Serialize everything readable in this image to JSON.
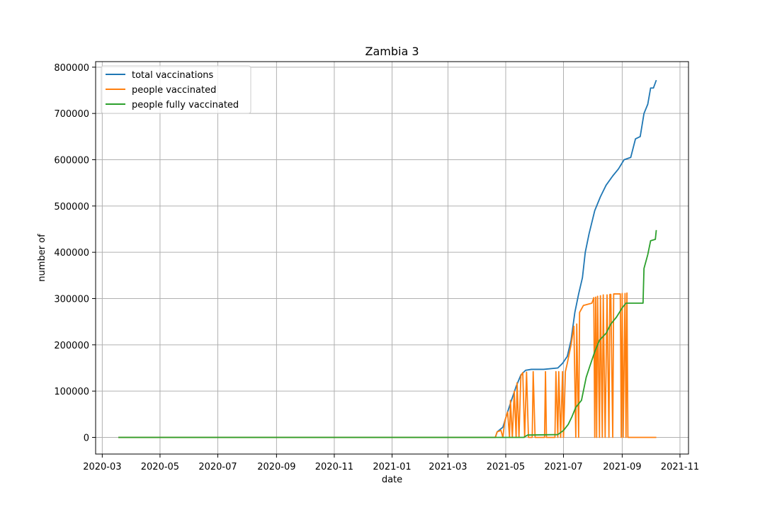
{
  "chart_data": {
    "type": "line",
    "title": "Zambia 3",
    "xlabel": "date",
    "ylabel": "number of",
    "x_axis": {
      "type": "date",
      "range": [
        "2020-02-23",
        "2021-11-10"
      ],
      "ticks": [
        "2020-03-01",
        "2020-05-01",
        "2020-07-01",
        "2020-09-01",
        "2020-11-01",
        "2021-01-01",
        "2021-03-01",
        "2021-05-01",
        "2021-07-01",
        "2021-09-01",
        "2021-11-01"
      ],
      "tick_labels": [
        "2020-03",
        "2020-05",
        "2020-07",
        "2020-09",
        "2020-11",
        "2021-01",
        "2021-03",
        "2021-05",
        "2021-07",
        "2021-09",
        "2021-11"
      ]
    },
    "y_axis": {
      "range": [
        -36000,
        812000
      ],
      "ticks": [
        0,
        100000,
        200000,
        300000,
        400000,
        500000,
        600000,
        700000,
        800000
      ],
      "tick_labels": [
        "0",
        "100000",
        "200000",
        "300000",
        "400000",
        "500000",
        "600000",
        "700000",
        "800000"
      ]
    },
    "grid": true,
    "legend_position": "upper-left",
    "series": [
      {
        "name": "total vaccinations",
        "color": "#1f77b4",
        "points": [
          [
            "2020-03-18",
            0
          ],
          [
            "2021-04-20",
            0
          ],
          [
            "2021-04-22",
            12000
          ],
          [
            "2021-04-28",
            22000
          ],
          [
            "2021-05-03",
            55000
          ],
          [
            "2021-05-07",
            80000
          ],
          [
            "2021-05-12",
            110000
          ],
          [
            "2021-05-17",
            135000
          ],
          [
            "2021-05-22",
            145000
          ],
          [
            "2021-05-28",
            147000
          ],
          [
            "2021-06-10",
            147000
          ],
          [
            "2021-06-25",
            150000
          ],
          [
            "2021-06-30",
            160000
          ],
          [
            "2021-07-05",
            175000
          ],
          [
            "2021-07-09",
            210000
          ],
          [
            "2021-07-13",
            270000
          ],
          [
            "2021-07-17",
            310000
          ],
          [
            "2021-07-21",
            345000
          ],
          [
            "2021-07-24",
            400000
          ],
          [
            "2021-07-28",
            440000
          ],
          [
            "2021-08-03",
            490000
          ],
          [
            "2021-08-09",
            520000
          ],
          [
            "2021-08-15",
            545000
          ],
          [
            "2021-08-22",
            565000
          ],
          [
            "2021-08-28",
            580000
          ],
          [
            "2021-09-03",
            600000
          ],
          [
            "2021-09-10",
            605000
          ],
          [
            "2021-09-15",
            645000
          ],
          [
            "2021-09-20",
            650000
          ],
          [
            "2021-09-24",
            700000
          ],
          [
            "2021-09-28",
            720000
          ],
          [
            "2021-10-01",
            755000
          ],
          [
            "2021-10-04",
            755000
          ],
          [
            "2021-10-07",
            772000
          ]
        ]
      },
      {
        "name": "people vaccinated",
        "color": "#ff7f0e",
        "points": [
          [
            "2020-03-18",
            0
          ],
          [
            "2021-04-20",
            0
          ],
          [
            "2021-04-22",
            12000
          ],
          [
            "2021-04-26",
            15000
          ],
          [
            "2021-04-28",
            0
          ],
          [
            "2021-04-30",
            35000
          ],
          [
            "2021-05-03",
            55000
          ],
          [
            "2021-05-05",
            0
          ],
          [
            "2021-05-06",
            80000
          ],
          [
            "2021-05-08",
            0
          ],
          [
            "2021-05-10",
            100000
          ],
          [
            "2021-05-12",
            0
          ],
          [
            "2021-05-13",
            118000
          ],
          [
            "2021-05-15",
            0
          ],
          [
            "2021-05-17",
            133000
          ],
          [
            "2021-05-19",
            140000
          ],
          [
            "2021-05-21",
            0
          ],
          [
            "2021-05-23",
            141000
          ],
          [
            "2021-05-25",
            0
          ],
          [
            "2021-05-29",
            0
          ],
          [
            "2021-05-30",
            142000
          ],
          [
            "2021-06-01",
            0
          ],
          [
            "2021-06-11",
            0
          ],
          [
            "2021-06-12",
            142000
          ],
          [
            "2021-06-13",
            0
          ],
          [
            "2021-06-22",
            0
          ],
          [
            "2021-06-23",
            142000
          ],
          [
            "2021-06-25",
            0
          ],
          [
            "2021-06-26",
            142000
          ],
          [
            "2021-06-28",
            0
          ],
          [
            "2021-06-30",
            142000
          ],
          [
            "2021-07-01",
            0
          ],
          [
            "2021-07-03",
            142000
          ],
          [
            "2021-07-05",
            160000
          ],
          [
            "2021-07-09",
            200000
          ],
          [
            "2021-07-12",
            240000
          ],
          [
            "2021-07-14",
            0
          ],
          [
            "2021-07-15",
            245000
          ],
          [
            "2021-07-17",
            0
          ],
          [
            "2021-07-18",
            270000
          ],
          [
            "2021-07-22",
            285000
          ],
          [
            "2021-07-31",
            290000
          ],
          [
            "2021-08-02",
            302000
          ],
          [
            "2021-08-03",
            0
          ],
          [
            "2021-08-04",
            303000
          ],
          [
            "2021-08-05",
            0
          ],
          [
            "2021-08-06",
            305000
          ],
          [
            "2021-08-08",
            0
          ],
          [
            "2021-08-09",
            306000
          ],
          [
            "2021-08-11",
            0
          ],
          [
            "2021-08-12",
            308000
          ],
          [
            "2021-08-14",
            0
          ],
          [
            "2021-08-16",
            308000
          ],
          [
            "2021-08-18",
            0
          ],
          [
            "2021-08-19",
            309000
          ],
          [
            "2021-08-20",
            309000
          ],
          [
            "2021-08-22",
            0
          ],
          [
            "2021-08-23",
            310000
          ],
          [
            "2021-08-30",
            310000
          ],
          [
            "2021-08-31",
            0
          ],
          [
            "2021-09-01",
            311000
          ],
          [
            "2021-09-02",
            0
          ],
          [
            "2021-09-04",
            311000
          ],
          [
            "2021-09-05",
            0
          ],
          [
            "2021-09-06",
            312000
          ],
          [
            "2021-09-07",
            0
          ],
          [
            "2021-10-07",
            0
          ]
        ]
      },
      {
        "name": "people fully vaccinated",
        "color": "#2ca02c",
        "points": [
          [
            "2020-03-18",
            0
          ],
          [
            "2021-05-20",
            0
          ],
          [
            "2021-05-24",
            5000
          ],
          [
            "2021-06-25",
            6000
          ],
          [
            "2021-07-01",
            15000
          ],
          [
            "2021-07-06",
            28000
          ],
          [
            "2021-07-10",
            45000
          ],
          [
            "2021-07-14",
            65000
          ],
          [
            "2021-07-20",
            80000
          ],
          [
            "2021-07-25",
            130000
          ],
          [
            "2021-07-29",
            155000
          ],
          [
            "2021-08-03",
            185000
          ],
          [
            "2021-08-08",
            210000
          ],
          [
            "2021-08-15",
            225000
          ],
          [
            "2021-08-20",
            245000
          ],
          [
            "2021-08-26",
            260000
          ],
          [
            "2021-09-01",
            280000
          ],
          [
            "2021-09-03",
            285000
          ],
          [
            "2021-09-05",
            290000
          ],
          [
            "2021-09-23",
            290000
          ],
          [
            "2021-09-24",
            365000
          ],
          [
            "2021-09-26",
            380000
          ],
          [
            "2021-09-28",
            395000
          ],
          [
            "2021-10-01",
            425000
          ],
          [
            "2021-10-06",
            428000
          ],
          [
            "2021-10-07",
            448000
          ]
        ]
      }
    ]
  }
}
